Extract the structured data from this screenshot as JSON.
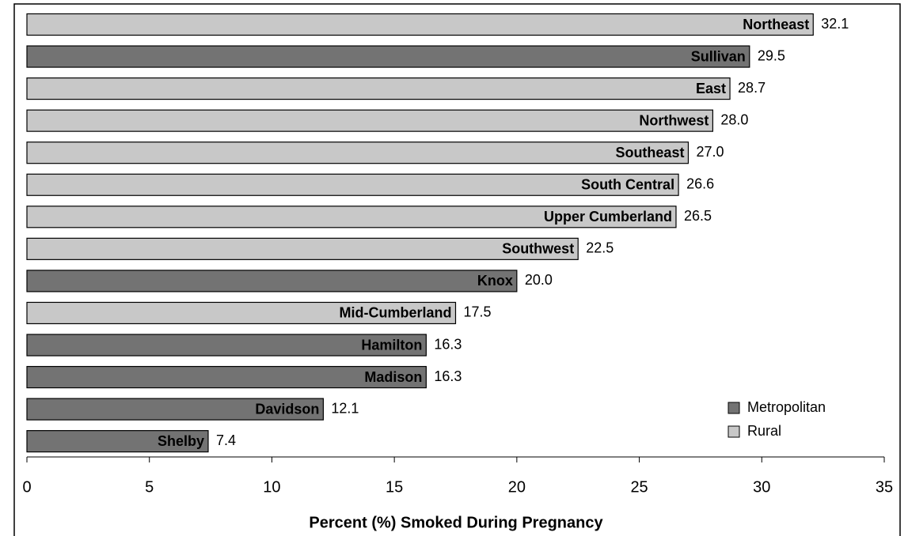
{
  "chart_data": {
    "type": "barh",
    "categories": [
      "Northeast",
      "Sullivan",
      "East",
      "Northwest",
      "Southeast",
      "South Central",
      "Upper Cumberland",
      "Southwest",
      "Knox",
      "Mid-Cumberland",
      "Hamilton",
      "Madison",
      "Davidson",
      "Shelby"
    ],
    "series": [
      {
        "name": "Metropolitan",
        "color": "#737373",
        "values": [
          null,
          29.5,
          null,
          null,
          null,
          null,
          null,
          null,
          20.0,
          null,
          16.3,
          16.3,
          12.1,
          7.4
        ],
        "value_labels": [
          null,
          "29.5",
          null,
          null,
          null,
          null,
          null,
          null,
          "20.0",
          null,
          "16.3",
          "16.3",
          "12.1",
          "7.4"
        ]
      },
      {
        "name": "Rural",
        "color": "#c8c8c8",
        "values": [
          32.1,
          null,
          28.7,
          28.0,
          27.0,
          26.6,
          26.5,
          22.5,
          null,
          17.5,
          null,
          null,
          null,
          null
        ],
        "value_labels": [
          "32.1",
          null,
          "28.7",
          "28.0",
          "27.0",
          "26.6",
          "26.5",
          "22.5",
          null,
          "17.5",
          null,
          null,
          null,
          null
        ]
      }
    ],
    "xlabel": "Percent (%) Smoked During Pregnancy",
    "xlim": [
      0,
      35
    ],
    "xticks": [
      0,
      5,
      10,
      15,
      20,
      25,
      30,
      35
    ],
    "legend": "lower right"
  }
}
